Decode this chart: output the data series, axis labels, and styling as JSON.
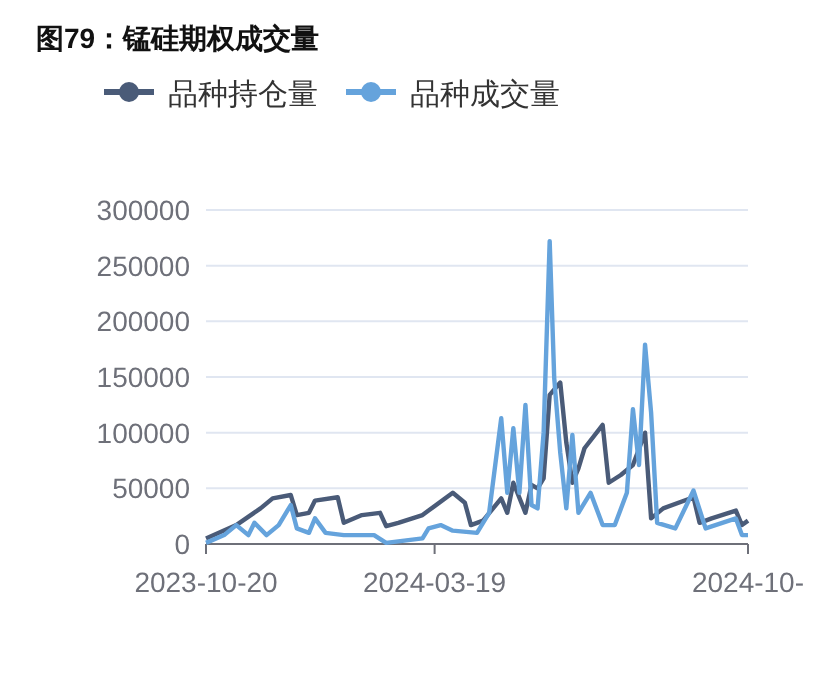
{
  "chart_data": {
    "type": "line",
    "title": "图79：锰硅期权成交量",
    "xlim": [
      "2023-10-20",
      "2024-10-12"
    ],
    "xticks": [
      {
        "value": "2023-10-20",
        "label": "2023-10-20"
      },
      {
        "value": "2024-03-19",
        "label": "2024-03-19"
      },
      {
        "value": "2024-10-12",
        "label": "2024-10-"
      }
    ],
    "ylim": [
      0,
      300000
    ],
    "yticks": [
      0,
      50000,
      100000,
      150000,
      200000,
      250000,
      300000
    ],
    "grid": "y",
    "legend": "top",
    "series": [
      {
        "name": "品种持仓量",
        "color": "#4a5b78",
        "x": [
          "2023-10-20",
          "2023-11-09",
          "2023-11-25",
          "2023-12-03",
          "2023-12-15",
          "2023-12-19",
          "2023-12-27",
          "2023-12-31",
          "2024-01-15",
          "2024-01-19",
          "2024-01-31",
          "2024-02-12",
          "2024-02-16",
          "2024-02-24",
          "2024-03-11",
          "2024-03-15",
          "2024-03-31",
          "2024-04-08",
          "2024-04-12",
          "2024-04-20",
          "2024-05-02",
          "2024-05-06",
          "2024-05-10",
          "2024-05-18",
          "2024-05-22",
          "2024-05-26",
          "2024-05-30",
          "2024-06-03",
          "2024-06-10",
          "2024-06-14",
          "2024-06-18",
          "2024-06-22",
          "2024-06-26",
          "2024-07-08",
          "2024-07-12",
          "2024-07-20",
          "2024-07-28",
          "2024-08-05",
          "2024-08-09",
          "2024-08-17",
          "2024-09-06",
          "2024-09-10",
          "2024-09-18",
          "2024-10-04",
          "2024-10-08",
          "2024-10-12"
        ],
        "values": [
          5000,
          17000,
          32000,
          41000,
          44000,
          26000,
          28000,
          39000,
          42000,
          19000,
          26000,
          28000,
          16000,
          19000,
          26000,
          30000,
          46000,
          37000,
          17000,
          21000,
          41000,
          28000,
          55000,
          28000,
          53000,
          50000,
          59000,
          134000,
          145000,
          91000,
          55000,
          68000,
          86000,
          107000,
          55000,
          62000,
          71000,
          100000,
          23000,
          32000,
          42000,
          19000,
          23000,
          30000,
          17000,
          21000
        ]
      },
      {
        "name": "品种成交量",
        "color": "#65a3dc",
        "x": [
          "2023-10-20",
          "2023-11-01",
          "2023-11-09",
          "2023-11-17",
          "2023-11-21",
          "2023-11-29",
          "2023-12-07",
          "2023-12-15",
          "2023-12-19",
          "2023-12-27",
          "2023-12-31",
          "2024-01-07",
          "2024-01-19",
          "2024-02-08",
          "2024-02-16",
          "2024-03-11",
          "2024-03-15",
          "2024-03-23",
          "2024-03-31",
          "2024-04-16",
          "2024-04-24",
          "2024-05-02",
          "2024-05-06",
          "2024-05-10",
          "2024-05-14",
          "2024-05-18",
          "2024-05-22",
          "2024-05-26",
          "2024-05-30",
          "2024-06-03",
          "2024-06-06",
          "2024-06-10",
          "2024-06-14",
          "2024-06-18",
          "2024-06-22",
          "2024-06-30",
          "2024-07-08",
          "2024-07-16",
          "2024-07-24",
          "2024-07-28",
          "2024-08-01",
          "2024-08-05",
          "2024-08-09",
          "2024-08-13",
          "2024-08-25",
          "2024-09-06",
          "2024-09-14",
          "2024-10-04",
          "2024-10-08",
          "2024-10-12"
        ],
        "values": [
          1000,
          8000,
          17000,
          8000,
          19000,
          8000,
          17000,
          35000,
          14000,
          10000,
          23000,
          10000,
          8000,
          8000,
          1000,
          5000,
          14000,
          17000,
          12000,
          10000,
          28000,
          113000,
          46000,
          104000,
          46000,
          125000,
          35000,
          32000,
          100000,
          272000,
          149000,
          82000,
          32000,
          98000,
          28000,
          46000,
          17000,
          17000,
          46000,
          121000,
          71000,
          179000,
          118000,
          19000,
          14000,
          48000,
          14000,
          23000,
          8000,
          8000
        ]
      }
    ]
  }
}
